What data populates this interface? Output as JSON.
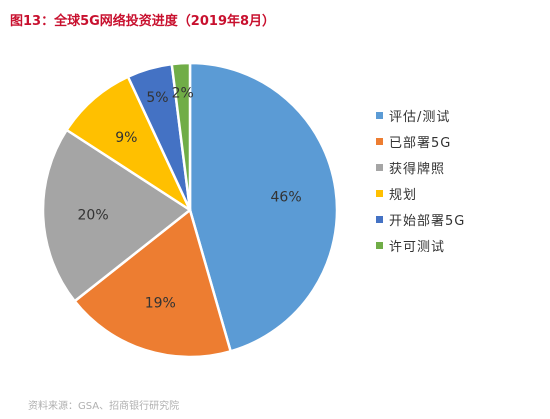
{
  "title": "图13：全球5G网络投资进度（2019年8月）",
  "source": "资料来源：GSA、招商银行研究院",
  "chart_data": {
    "type": "pie",
    "title": "图13：全球5G网络投资进度（2019年8月）",
    "legend_position": "right",
    "start_angle_deg": 0,
    "direction": "clockwise",
    "slices": [
      {
        "name": "评估/测试",
        "value": 46,
        "label": "46%",
        "color": "#5b9bd5"
      },
      {
        "name": "已部署5G",
        "value": 19,
        "label": "19%",
        "color": "#ed7d31"
      },
      {
        "name": "获得牌照",
        "value": 20,
        "label": "20%",
        "color": "#a5a5a5"
      },
      {
        "name": "规划",
        "value": 9,
        "label": "9%",
        "color": "#ffc000"
      },
      {
        "name": "开始部署5G",
        "value": 5,
        "label": "5%",
        "color": "#4472c4"
      },
      {
        "name": "许可测试",
        "value": 2,
        "label": "2%",
        "color": "#70ad47"
      }
    ]
  }
}
